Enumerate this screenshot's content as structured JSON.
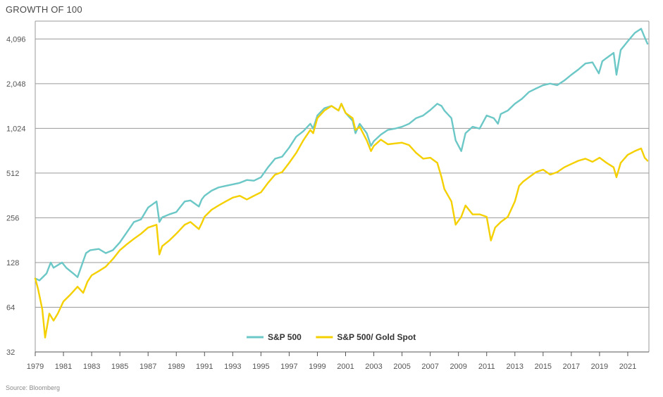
{
  "header": {
    "title": "GROWTH OF 100"
  },
  "footer": {
    "source": "Source: Bloomberg"
  },
  "chart_data": {
    "type": "line",
    "title": "GROWTH OF 100",
    "xlabel": "",
    "ylabel": "",
    "y_scale": "log2",
    "ylim": [
      32,
      5400
    ],
    "xlim": [
      1979,
      2022.5
    ],
    "yticks": [
      32,
      64,
      128,
      256,
      512,
      1024,
      2048,
      4096
    ],
    "ytick_labels": [
      "32",
      "64",
      "128",
      "256",
      "512",
      "1,024",
      "2,048",
      "4,096"
    ],
    "xticks": [
      1979,
      1981,
      1983,
      1985,
      1987,
      1989,
      1991,
      1993,
      1995,
      1997,
      1999,
      2001,
      2003,
      2005,
      2007,
      2009,
      2011,
      2013,
      2015,
      2017,
      2019,
      2021
    ],
    "xtick_labels": [
      "1979",
      "1981",
      "1983",
      "1985",
      "1987",
      "1989",
      "1991",
      "1993",
      "1995",
      "1997",
      "1999",
      "2001",
      "2003",
      "2005",
      "2007",
      "2009",
      "2011",
      "2013",
      "2015",
      "2017",
      "2019",
      "2021"
    ],
    "grid": "horizontal",
    "legend_position": "bottom-center",
    "series": [
      {
        "name": "S&P 500",
        "color": "#6cc7c7",
        "x": [
          1979.0,
          1979.3,
          1979.8,
          1980.1,
          1980.3,
          1980.9,
          1981.2,
          1981.7,
          1982.0,
          1982.6,
          1982.9,
          1983.5,
          1984.0,
          1984.5,
          1985.0,
          1985.5,
          1986.0,
          1986.5,
          1987.0,
          1987.6,
          1987.8,
          1988.0,
          1988.5,
          1989.0,
          1989.6,
          1990.0,
          1990.6,
          1990.8,
          1991.0,
          1991.5,
          1992.0,
          1992.5,
          1993.0,
          1993.5,
          1994.0,
          1994.5,
          1995.0,
          1995.5,
          1996.0,
          1996.5,
          1997.0,
          1997.5,
          1998.0,
          1998.5,
          1998.7,
          1999.0,
          1999.5,
          2000.0,
          2000.5,
          2000.7,
          2001.0,
          2001.5,
          2001.7,
          2002.0,
          2002.5,
          2002.8,
          2003.0,
          2003.5,
          2004.0,
          2004.5,
          2005.0,
          2005.5,
          2006.0,
          2006.5,
          2007.0,
          2007.5,
          2007.8,
          2008.0,
          2008.5,
          2008.8,
          2009.2,
          2009.5,
          2010.0,
          2010.5,
          2011.0,
          2011.5,
          2011.8,
          2012.0,
          2012.5,
          2013.0,
          2013.5,
          2014.0,
          2014.5,
          2015.0,
          2015.5,
          2016.0,
          2016.5,
          2017.0,
          2017.5,
          2018.0,
          2018.5,
          2018.95,
          2019.2,
          2019.5,
          2020.0,
          2020.2,
          2020.5,
          2021.0,
          2021.5,
          2021.95,
          2022.2,
          2022.4
        ],
        "values": [
          100,
          97,
          108,
          128,
          118,
          128,
          118,
          108,
          102,
          148,
          155,
          158,
          148,
          155,
          175,
          205,
          240,
          250,
          300,
          330,
          240,
          258,
          270,
          280,
          330,
          335,
          305,
          340,
          360,
          390,
          410,
          420,
          430,
          440,
          460,
          455,
          480,
          560,
          640,
          660,
          760,
          900,
          980,
          1100,
          1020,
          1250,
          1400,
          1450,
          1350,
          1500,
          1300,
          1150,
          950,
          1100,
          950,
          780,
          840,
          930,
          1000,
          1020,
          1050,
          1100,
          1200,
          1250,
          1360,
          1500,
          1450,
          1350,
          1200,
          850,
          720,
          950,
          1050,
          1020,
          1250,
          1200,
          1100,
          1280,
          1350,
          1500,
          1620,
          1800,
          1900,
          2000,
          2050,
          2000,
          2150,
          2350,
          2550,
          2800,
          2850,
          2400,
          2900,
          3050,
          3300,
          2350,
          3450,
          3950,
          4500,
          4800,
          4200,
          3800
        ]
      },
      {
        "name": "S&P 500/ Gold Spot",
        "color": "#f5d000",
        "x": [
          1979.0,
          1979.2,
          1979.5,
          1979.7,
          1980.0,
          1980.3,
          1980.6,
          1981.0,
          1981.5,
          1982.0,
          1982.4,
          1982.7,
          1983.0,
          1983.5,
          1984.0,
          1984.5,
          1985.0,
          1985.5,
          1986.0,
          1986.5,
          1987.0,
          1987.6,
          1987.8,
          1988.0,
          1988.5,
          1989.0,
          1989.6,
          1990.0,
          1990.6,
          1990.8,
          1991.0,
          1991.5,
          1992.0,
          1992.5,
          1993.0,
          1993.5,
          1994.0,
          1994.5,
          1995.0,
          1995.5,
          1996.0,
          1996.5,
          1997.0,
          1997.5,
          1998.0,
          1998.5,
          1998.7,
          1999.0,
          1999.5,
          2000.0,
          2000.5,
          2000.7,
          2001.0,
          2001.5,
          2001.7,
          2002.0,
          2002.5,
          2002.8,
          2003.0,
          2003.5,
          2004.0,
          2004.5,
          2005.0,
          2005.5,
          2006.0,
          2006.5,
          2007.0,
          2007.5,
          2007.8,
          2008.0,
          2008.5,
          2008.8,
          2009.2,
          2009.5,
          2010.0,
          2010.5,
          2011.0,
          2011.3,
          2011.6,
          2012.0,
          2012.5,
          2013.0,
          2013.3,
          2013.6,
          2014.0,
          2014.5,
          2015.0,
          2015.5,
          2016.0,
          2016.5,
          2017.0,
          2017.5,
          2018.0,
          2018.5,
          2019.0,
          2019.5,
          2020.0,
          2020.2,
          2020.5,
          2021.0,
          2021.5,
          2021.95,
          2022.2,
          2022.4
        ],
        "values": [
          100,
          85,
          62,
          40,
          58,
          52,
          58,
          70,
          78,
          88,
          80,
          95,
          105,
          112,
          120,
          135,
          155,
          170,
          185,
          200,
          220,
          230,
          145,
          165,
          180,
          200,
          230,
          240,
          215,
          235,
          260,
          290,
          310,
          330,
          350,
          360,
          340,
          360,
          380,
          440,
          500,
          520,
          600,
          700,
          850,
          1000,
          950,
          1200,
          1350,
          1450,
          1350,
          1500,
          1300,
          1200,
          1000,
          1050,
          850,
          720,
          780,
          860,
          800,
          810,
          820,
          790,
          700,
          640,
          650,
          600,
          480,
          400,
          330,
          230,
          260,
          310,
          270,
          270,
          260,
          180,
          220,
          240,
          260,
          330,
          420,
          450,
          480,
          520,
          540,
          500,
          520,
          560,
          590,
          620,
          640,
          610,
          650,
          600,
          560,
          480,
          600,
          680,
          720,
          750,
          650,
          620
        ]
      }
    ]
  }
}
